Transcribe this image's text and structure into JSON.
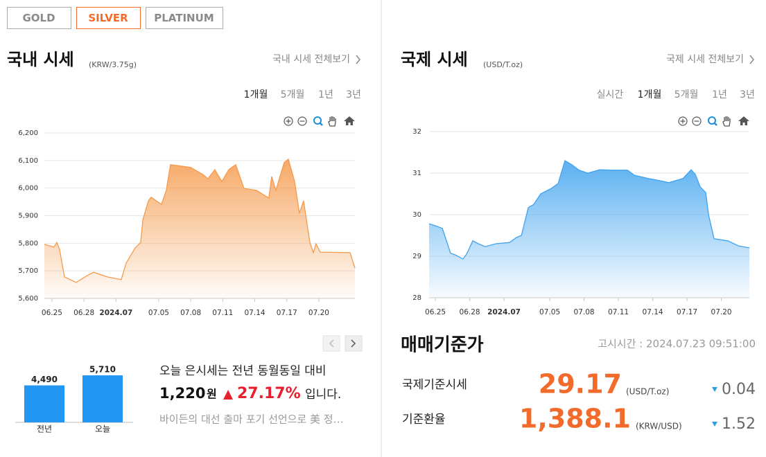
{
  "tabs": {
    "items": [
      "GOLD",
      "SILVER",
      "PLATINUM"
    ],
    "active": 1
  },
  "domestic": {
    "title": "국내 시세",
    "unit": "(KRW/3.75g)",
    "link": "국내 시세 전체보기",
    "periods": [
      "1개월",
      "5개월",
      "1년",
      "3년"
    ],
    "active_period": 0
  },
  "international": {
    "title": "국제 시세",
    "unit": "(USD/T.oz)",
    "link": "국제 시세 전체보기",
    "periods": [
      "실시간",
      "1개월",
      "5개월",
      "1년",
      "3년"
    ],
    "active_period": 1
  },
  "comparison": {
    "sentence": "오늘 은시세는 전년 동월동일 대비",
    "difference": "1,220",
    "currency": "원",
    "percent": "27.17%",
    "suffix": "입니다.",
    "news": "바이든의 대선 출마 포기 선언으로 美 정…"
  },
  "reference": {
    "title": "매매기준가",
    "time": "고시시간 : 2024.07.23 09:51:00",
    "rows": [
      {
        "label": "국제기준시세",
        "value": "29.17",
        "unit": "(USD/T.oz)",
        "change": "0.04"
      },
      {
        "label": "기준환율",
        "value": "1,388.1",
        "unit": "(KRW/USD)",
        "change": "1.52"
      }
    ]
  },
  "chart_data": [
    {
      "type": "area",
      "color": "#f59a4c",
      "grid": true,
      "x": [
        -0.71,
        0.19,
        0.45,
        0.71,
        1.17,
        2.27,
        3.31,
        3.9,
        5.19,
        6.49,
        6.95,
        7.79,
        8.31,
        8.51,
        9.03,
        9.29,
        10.26,
        10.71,
        11.1,
        12.99,
        14.16,
        14.61,
        15.26,
        15.91,
        16.56,
        17.21,
        17.99,
        19.16,
        20.32,
        20.58,
        20.97,
        21.75,
        22.14,
        22.73,
        23.18,
        23.57,
        24.16,
        24.48,
        24.74,
        25.13,
        27.92,
        28.38
      ],
      "values": [
        5796,
        5786,
        5803,
        5778,
        5678,
        5658,
        5683,
        5695,
        5678,
        5668,
        5728,
        5783,
        5803,
        5884,
        5954,
        5967,
        5941,
        5992,
        6085,
        6075,
        6049,
        6034,
        6067,
        6024,
        6067,
        6085,
        5999,
        5992,
        5964,
        6042,
        5992,
        6092,
        6105,
        6024,
        5909,
        5954,
        5803,
        5766,
        5798,
        5768,
        5766,
        5710
      ],
      "xlim": [
        -0.71,
        28.38
      ],
      "ylim": [
        5600,
        6200
      ],
      "xticks": [
        {
          "value": 0,
          "label": "06.25"
        },
        {
          "value": 3,
          "label": "06.28"
        },
        {
          "value": 6,
          "label": "2024.07"
        },
        {
          "value": 10,
          "label": "07.05"
        },
        {
          "value": 13,
          "label": "07.08"
        },
        {
          "value": 16,
          "label": "07.11"
        },
        {
          "value": 19,
          "label": "07.14"
        },
        {
          "value": 22,
          "label": "07.17"
        },
        {
          "value": 25,
          "label": "07.20"
        }
      ],
      "yticks": [
        {
          "value": 5600,
          "label": "5,600"
        },
        {
          "value": 5700,
          "label": "5,700"
        },
        {
          "value": 5800,
          "label": "5,800"
        },
        {
          "value": 5900,
          "label": "5,900"
        },
        {
          "value": 6000,
          "label": "6,000"
        },
        {
          "value": 6100,
          "label": "6,100"
        },
        {
          "value": 6200,
          "label": "6,200"
        }
      ]
    },
    {
      "type": "area",
      "color": "#3ea2ef",
      "grid": true,
      "x": [
        -0.55,
        0.12,
        0.61,
        1.33,
        1.76,
        2.42,
        2.79,
        3.27,
        3.76,
        4.36,
        5.27,
        6.48,
        7.09,
        7.52,
        8.12,
        8.61,
        9.21,
        10.12,
        10.73,
        11.33,
        11.94,
        12.55,
        13.33,
        14.36,
        15.58,
        16.79,
        17.39,
        18.61,
        19.39,
        20.42,
        21.64,
        22.36,
        22.73,
        23.15,
        23.64,
        23.88,
        24.36,
        25.58,
        26.48,
        27.45
      ],
      "values": [
        29.78,
        29.72,
        29.67,
        29.07,
        29.03,
        28.93,
        29.08,
        29.37,
        29.3,
        29.23,
        29.3,
        29.33,
        29.45,
        29.5,
        30.17,
        30.25,
        30.5,
        30.63,
        30.75,
        31.3,
        31.2,
        31.07,
        31.0,
        31.08,
        31.07,
        31.07,
        30.95,
        30.87,
        30.83,
        30.77,
        30.87,
        31.08,
        30.97,
        30.67,
        30.53,
        30.0,
        29.42,
        29.37,
        29.25,
        29.2
      ],
      "xlim": [
        -0.55,
        27.45
      ],
      "ylim": [
        28,
        32
      ],
      "xticks": [
        {
          "value": 0,
          "label": "06.25"
        },
        {
          "value": 3,
          "label": "06.28"
        },
        {
          "value": 6,
          "label": "2024.07"
        },
        {
          "value": 10,
          "label": "07.05"
        },
        {
          "value": 13,
          "label": "07.08"
        },
        {
          "value": 16,
          "label": "07.11"
        },
        {
          "value": 19,
          "label": "07.14"
        },
        {
          "value": 22,
          "label": "07.17"
        },
        {
          "value": 25,
          "label": "07.20"
        }
      ],
      "yticks": [
        28,
        29,
        30,
        31,
        32
      ]
    },
    {
      "type": "bar",
      "color": "#2196f3",
      "categories": [
        "전년",
        "오늘"
      ],
      "values": [
        4490,
        5710
      ],
      "value_labels": [
        "4,490",
        "5,710"
      ],
      "ylim": [
        0,
        6000
      ]
    }
  ]
}
